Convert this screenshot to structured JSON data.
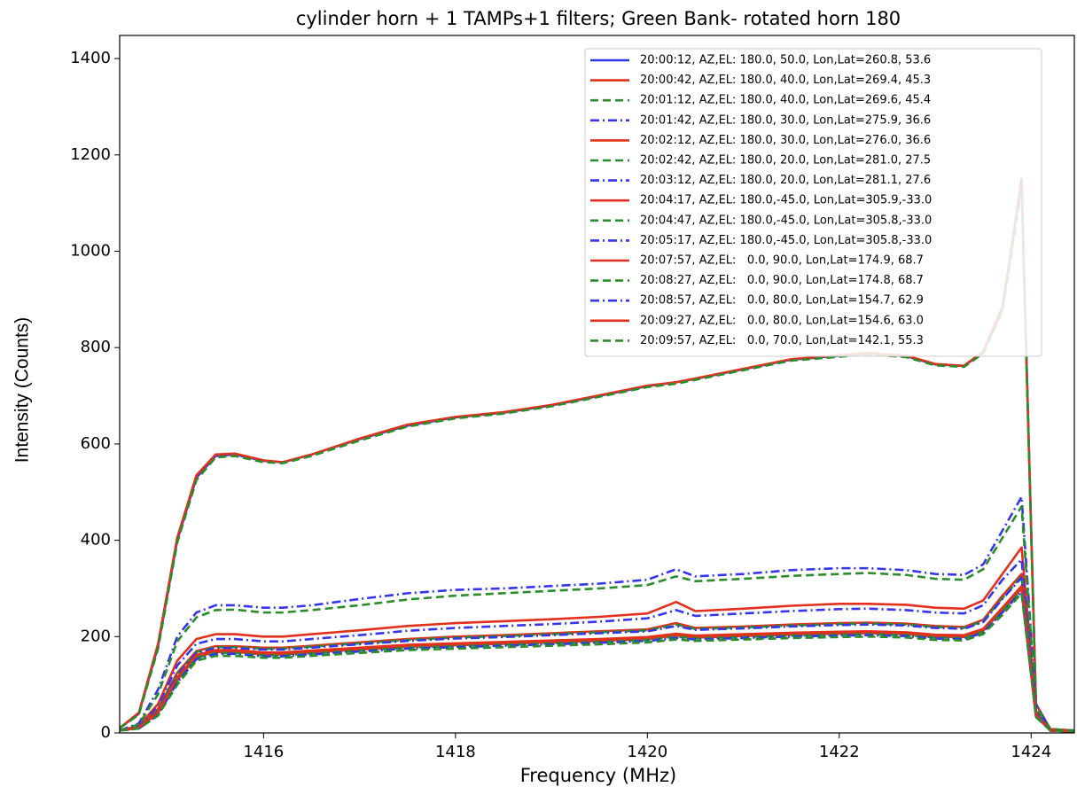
{
  "chart_data": {
    "type": "line",
    "title": "cylinder horn + 1 TAMPs+1 filters; Green Bank- rotated horn 180",
    "xlabel": "Frequency (MHz)",
    "ylabel": "Intensity (Counts)",
    "xlim": [
      1414.5,
      1424.45
    ],
    "ylim": [
      0,
      1448
    ],
    "xticks": [
      1416,
      1418,
      1420,
      1422,
      1424
    ],
    "yticks": [
      0,
      200,
      400,
      600,
      800,
      1000,
      1200,
      1400
    ],
    "legend": "upper right",
    "x": [
      1414.5,
      1414.7,
      1414.9,
      1415.1,
      1415.3,
      1415.5,
      1415.7,
      1416.0,
      1416.2,
      1416.5,
      1417.0,
      1417.5,
      1418.0,
      1418.5,
      1419.0,
      1419.5,
      1420.0,
      1420.3,
      1420.5,
      1421.0,
      1421.5,
      1422.0,
      1422.3,
      1422.7,
      1423.0,
      1423.3,
      1423.5,
      1423.7,
      1423.9,
      1424.05,
      1424.2,
      1424.45
    ],
    "series": [
      {
        "name": "20:00:12, AZ,EL: 180.0, 50.0, Lon,Lat=260.8, 53.6",
        "color": "#3535ee",
        "style": "solid",
        "values": [
          10,
          40,
          180,
          400,
          530,
          575,
          578,
          565,
          562,
          578,
          610,
          638,
          655,
          665,
          680,
          700,
          720,
          728,
          735,
          755,
          775,
          783,
          788,
          782,
          765,
          762,
          790,
          880,
          1150,
          60,
          8,
          5
        ]
      },
      {
        "name": "20:00:42, AZ,EL: 180.0, 40.0, Lon,Lat=269.4, 45.3",
        "color": "#e3301c",
        "style": "solid",
        "values": [
          10,
          42,
          185,
          405,
          535,
          578,
          580,
          566,
          562,
          578,
          611,
          640,
          656,
          666,
          681,
          701,
          721,
          728,
          736,
          756,
          776,
          784,
          789,
          783,
          766,
          762,
          792,
          885,
          1140,
          60,
          8,
          5
        ]
      },
      {
        "name": "20:01:12, AZ,EL: 180.0, 40.0, Lon,Lat=269.6, 45.4",
        "color": "#2a8c2a",
        "style": "dashed",
        "values": [
          10,
          38,
          175,
          395,
          525,
          572,
          575,
          562,
          560,
          575,
          607,
          636,
          653,
          663,
          678,
          698,
          718,
          725,
          733,
          753,
          773,
          781,
          786,
          780,
          763,
          760,
          788,
          875,
          1130,
          58,
          8,
          5
        ]
      },
      {
        "name": "20:01:42, AZ,EL: 180.0, 30.0, Lon,Lat=275.9, 36.6",
        "color": "#3535ee",
        "style": "dashdot",
        "values": [
          5,
          20,
          90,
          200,
          250,
          265,
          265,
          260,
          260,
          265,
          278,
          290,
          297,
          300,
          305,
          310,
          318,
          340,
          325,
          330,
          338,
          342,
          342,
          338,
          330,
          328,
          350,
          420,
          490,
          60,
          5,
          3
        ]
      },
      {
        "name": "20:02:12, AZ,EL: 180.0, 30.0, Lon,Lat=276.0, 36.6",
        "color": "#e3301c",
        "style": "solid",
        "values": [
          5,
          15,
          60,
          150,
          195,
          205,
          205,
          200,
          200,
          205,
          213,
          222,
          228,
          232,
          236,
          241,
          248,
          272,
          253,
          258,
          264,
          268,
          268,
          266,
          260,
          258,
          275,
          330,
          385,
          45,
          5,
          3
        ]
      },
      {
        "name": "20:02:42, AZ,EL: 180.0, 20.0, Lon,Lat=281.0, 27.5",
        "color": "#2a8c2a",
        "style": "dashed",
        "values": [
          5,
          18,
          80,
          190,
          240,
          255,
          256,
          250,
          250,
          255,
          265,
          277,
          285,
          290,
          295,
          300,
          307,
          325,
          315,
          320,
          326,
          330,
          332,
          328,
          320,
          318,
          340,
          405,
          470,
          55,
          5,
          3
        ]
      },
      {
        "name": "20:03:12, AZ,EL: 180.0, 20.0, Lon,Lat=281.1, 27.6",
        "color": "#3535ee",
        "style": "dashdot",
        "values": [
          5,
          14,
          55,
          140,
          185,
          195,
          195,
          190,
          190,
          195,
          203,
          212,
          218,
          222,
          226,
          231,
          238,
          255,
          243,
          248,
          253,
          257,
          258,
          255,
          250,
          248,
          265,
          318,
          360,
          45,
          5,
          3
        ]
      },
      {
        "name": "20:04:17, AZ,EL: 180.0,-45.0, Lon,Lat=305.9,-33.0",
        "color": "#e3301c",
        "style": "solid",
        "values": [
          5,
          12,
          50,
          125,
          170,
          180,
          180,
          177,
          177,
          181,
          188,
          195,
          200,
          203,
          207,
          211,
          215,
          228,
          218,
          221,
          225,
          228,
          229,
          227,
          222,
          220,
          235,
          285,
          330,
          40,
          5,
          3
        ]
      },
      {
        "name": "20:04:47, AZ,EL: 180.0,-45.0, Lon,Lat=305.8,-33.0",
        "color": "#2a8c2a",
        "style": "dashed",
        "values": [
          5,
          12,
          48,
          122,
          168,
          178,
          178,
          175,
          175,
          179,
          186,
          193,
          198,
          201,
          205,
          209,
          213,
          225,
          216,
          219,
          223,
          226,
          227,
          225,
          220,
          218,
          232,
          280,
          325,
          40,
          5,
          3
        ]
      },
      {
        "name": "20:05:17, AZ,EL: 180.0,-45.0, Lon,Lat=305.8,-33.0",
        "color": "#3535ee",
        "style": "dashdot",
        "values": [
          5,
          11,
          46,
          120,
          166,
          176,
          176,
          173,
          173,
          177,
          184,
          191,
          196,
          199,
          203,
          207,
          211,
          222,
          214,
          217,
          221,
          224,
          225,
          223,
          218,
          216,
          230,
          278,
          322,
          38,
          5,
          3
        ]
      },
      {
        "name": "20:07:57, AZ,EL:   0.0, 90.0, Lon,Lat=174.9, 68.7",
        "color": "#e3301c",
        "style": "solid",
        "values": [
          5,
          10,
          42,
          110,
          158,
          168,
          168,
          163,
          163,
          167,
          173,
          179,
          182,
          185,
          188,
          191,
          195,
          202,
          198,
          201,
          204,
          206,
          207,
          205,
          200,
          199,
          212,
          255,
          300,
          35,
          5,
          3
        ]
      },
      {
        "name": "20:08:27, AZ,EL:   0.0, 90.0, Lon,Lat=174.8, 68.7",
        "color": "#2a8c2a",
        "style": "dashed",
        "values": [
          5,
          10,
          40,
          108,
          156,
          166,
          166,
          161,
          161,
          165,
          171,
          177,
          180,
          183,
          186,
          189,
          193,
          200,
          196,
          199,
          202,
          204,
          205,
          203,
          198,
          197,
          210,
          252,
          296,
          35,
          5,
          3
        ]
      },
      {
        "name": "20:08:57, AZ,EL:   0.0, 80.0, Lon,Lat=154.7, 62.9",
        "color": "#3535ee",
        "style": "dashdot",
        "values": [
          5,
          9,
          38,
          105,
          153,
          164,
          164,
          159,
          159,
          163,
          169,
          175,
          178,
          181,
          184,
          187,
          191,
          197,
          194,
          197,
          200,
          202,
          203,
          201,
          196,
          195,
          208,
          250,
          293,
          34,
          5,
          3
        ]
      },
      {
        "name": "20:09:27, AZ,EL:   0.0, 80.0, Lon,Lat=154.6, 63.0",
        "color": "#e3301c",
        "style": "solid",
        "values": [
          5,
          11,
          44,
          115,
          162,
          172,
          172,
          167,
          167,
          171,
          177,
          183,
          186,
          189,
          192,
          195,
          199,
          206,
          202,
          205,
          208,
          210,
          211,
          209,
          204,
          203,
          216,
          260,
          305,
          36,
          5,
          3
        ]
      },
      {
        "name": "20:09:57, AZ,EL:   0.0, 70.0, Lon,Lat=142.1, 55.3",
        "color": "#2a8c2a",
        "style": "dashed",
        "values": [
          5,
          9,
          36,
          100,
          150,
          160,
          160,
          156,
          156,
          160,
          166,
          172,
          175,
          178,
          181,
          184,
          188,
          194,
          191,
          194,
          197,
          199,
          200,
          198,
          193,
          192,
          205,
          245,
          290,
          33,
          5,
          3
        ]
      }
    ]
  }
}
